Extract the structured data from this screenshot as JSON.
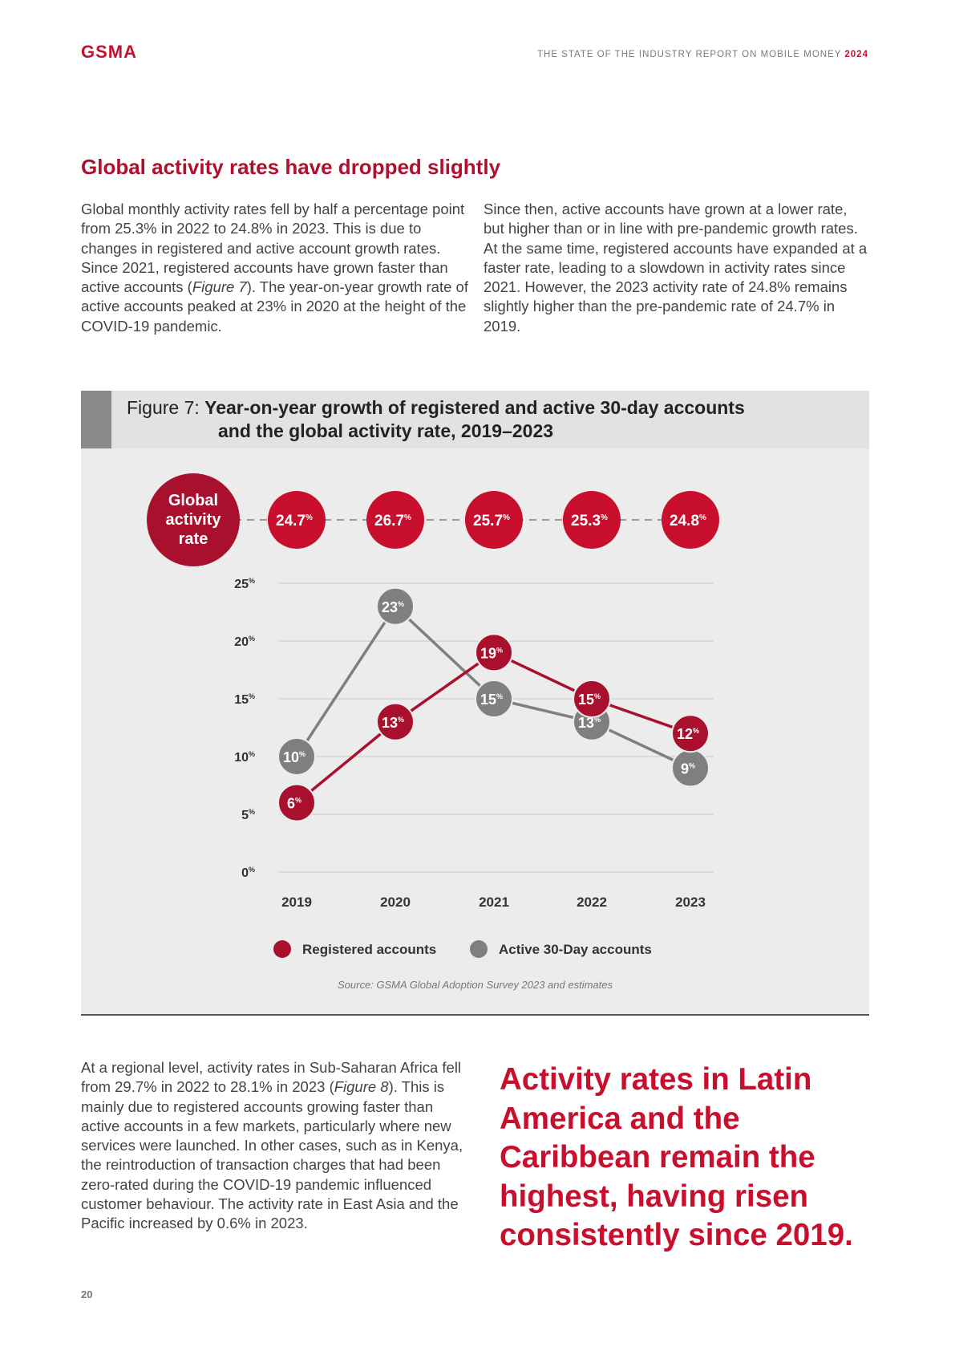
{
  "header": {
    "logo": "GSMA",
    "report_title": "THE STATE OF THE INDUSTRY REPORT ON MOBILE MONEY",
    "report_year": "2024"
  },
  "section": {
    "heading": "Global activity rates have dropped slightly",
    "para1_a": "Global monthly activity rates fell by half a percentage point from 25.3% in 2022 to 24.8% in 2023. This is due to changes in registered and active account growth rates. Since 2021, registered accounts have grown faster than active accounts (",
    "para1_fig": "Figure 7",
    "para1_b": "). The year-on-year growth rate of active accounts peaked at 23% in 2020 at the height of the COVID-19 pandemic.",
    "para2": "Since then, active accounts have grown at a lower rate, but higher than or in line with pre-pandemic growth rates. At the same time, registered accounts have expanded at a faster rate, leading to a slowdown in activity rates since 2021. However, the 2023 activity rate of 24.8% remains slightly higher than the pre-pandemic rate of 24.7% in 2019."
  },
  "figure": {
    "label": "Figure 7:",
    "title_line1": "Year-on-year growth of registered and active 30-day accounts",
    "title_line2": "and the global activity rate, 2019–2023",
    "source": "Source: GSMA Global Adoption Survey 2023 and estimates"
  },
  "chart_data": {
    "type": "line",
    "title": "Year-on-year growth of registered and active 30-day accounts and the global activity rate, 2019–2023",
    "x": [
      "2019",
      "2020",
      "2021",
      "2022",
      "2023"
    ],
    "ylim": [
      0,
      25
    ],
    "yticks": [
      0,
      5,
      10,
      15,
      20,
      25
    ],
    "unit": "%",
    "grid": true,
    "series": [
      {
        "name": "Registered accounts",
        "color": "#a8102e",
        "values": [
          6,
          13,
          19,
          15,
          12
        ]
      },
      {
        "name": "Active 30-Day accounts",
        "color": "#7f7f7f",
        "values": [
          10,
          23,
          15,
          13,
          9
        ]
      }
    ],
    "activity_rate": {
      "label_line1": "Global",
      "label_line2": "activity",
      "label_line3": "rate",
      "values": [
        "24.7",
        "26.7",
        "25.7",
        "25.3",
        "24.8"
      ]
    },
    "legend": [
      "Registered accounts",
      "Active 30-Day accounts"
    ]
  },
  "lower": {
    "para3_a": "At a regional level, activity rates in Sub-Saharan Africa fell from 29.7% in 2022 to 28.1% in 2023 (",
    "para3_fig": "Figure 8",
    "para3_b": "). This is mainly due to registered accounts growing faster than active accounts in a few markets, particularly where new services were launched. In other cases, such as in Kenya, the reintroduction of transaction charges that had been zero-rated during the COVID-19 pandemic influenced customer behaviour. The activity rate in East Asia and the Pacific increased by 0.6% in 2023.",
    "pullquote": "Activity rates in Latin America and the Caribbean remain the highest, having risen consistently since 2019."
  },
  "footer": {
    "page_number": "20"
  },
  "colors": {
    "brand_red": "#c8102e",
    "series_red": "#a8102e",
    "series_grey": "#7f7f7f"
  }
}
